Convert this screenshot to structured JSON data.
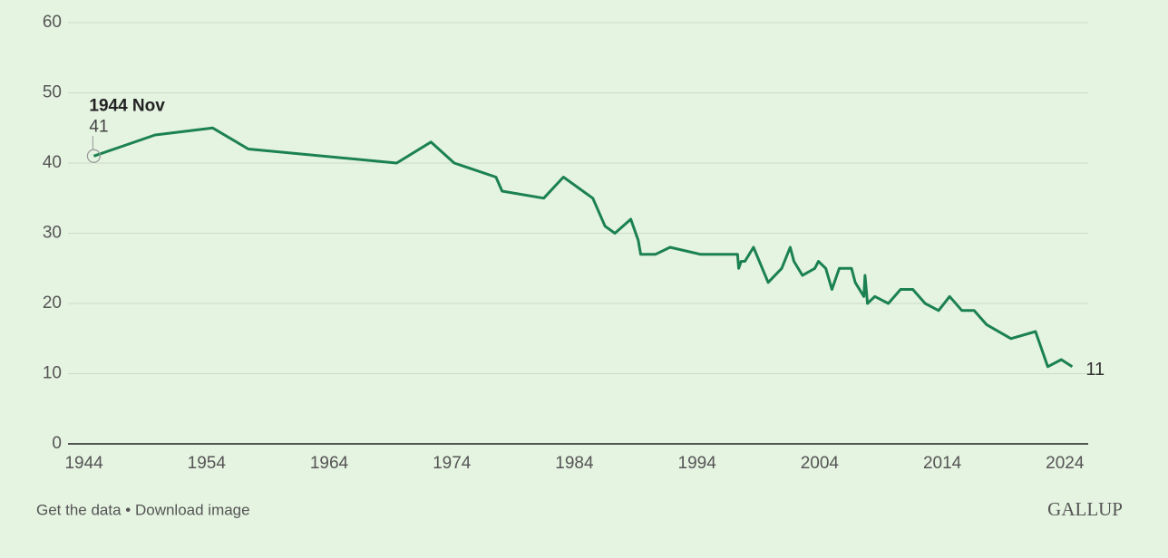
{
  "chart_data": {
    "type": "line",
    "x": [
      1944.8,
      1949.8,
      1954.5,
      1957.4,
      1969.5,
      1972.3,
      1974.2,
      1977.6,
      1978.1,
      1981.5,
      1983.1,
      1985.5,
      1986.5,
      1987.3,
      1988.6,
      1989.2,
      1989.4,
      1990.6,
      1991.8,
      1994.3,
      1997.3,
      1997.4,
      1997.6,
      1997.9,
      1998.6,
      1999.8,
      2000.9,
      2001.6,
      2001.9,
      2002.6,
      2003.6,
      2003.9,
      2004.5,
      2005.0,
      2005.6,
      2006.6,
      2006.9,
      2007.6,
      2007.7,
      2007.9,
      2008.5,
      2009.6,
      2010.6,
      2011.6,
      2012.6,
      2013.7,
      2014.6,
      2015.6,
      2016.6,
      2017.6,
      2019.6,
      2021.6,
      2022.6,
      2023.7,
      2024.6
    ],
    "values": [
      41,
      44,
      45,
      42,
      40,
      43,
      40,
      38,
      36,
      35,
      38,
      35,
      31,
      30,
      32,
      29,
      27,
      27,
      28,
      27,
      27,
      25,
      26,
      26,
      28,
      23,
      25,
      28,
      26,
      24,
      25,
      26,
      25,
      22,
      25,
      25,
      23,
      21,
      24,
      20,
      21,
      20,
      22,
      22,
      20,
      19,
      21,
      19,
      19,
      17,
      15,
      16,
      11,
      12,
      11
    ],
    "color": "#1b8150",
    "xlim": [
      1942.7,
      2025.9
    ],
    "xticks": [
      1944,
      1954,
      1964,
      1974,
      1984,
      1994,
      2004,
      2014,
      2024
    ],
    "ylim": [
      0,
      60
    ],
    "yticks": [
      0,
      10,
      20,
      30,
      40,
      50,
      60
    ],
    "grid": true,
    "annotation": "1944 Nov"
  },
  "footer": {
    "links": "Get the data • Download image",
    "brand": "GALLUP"
  }
}
